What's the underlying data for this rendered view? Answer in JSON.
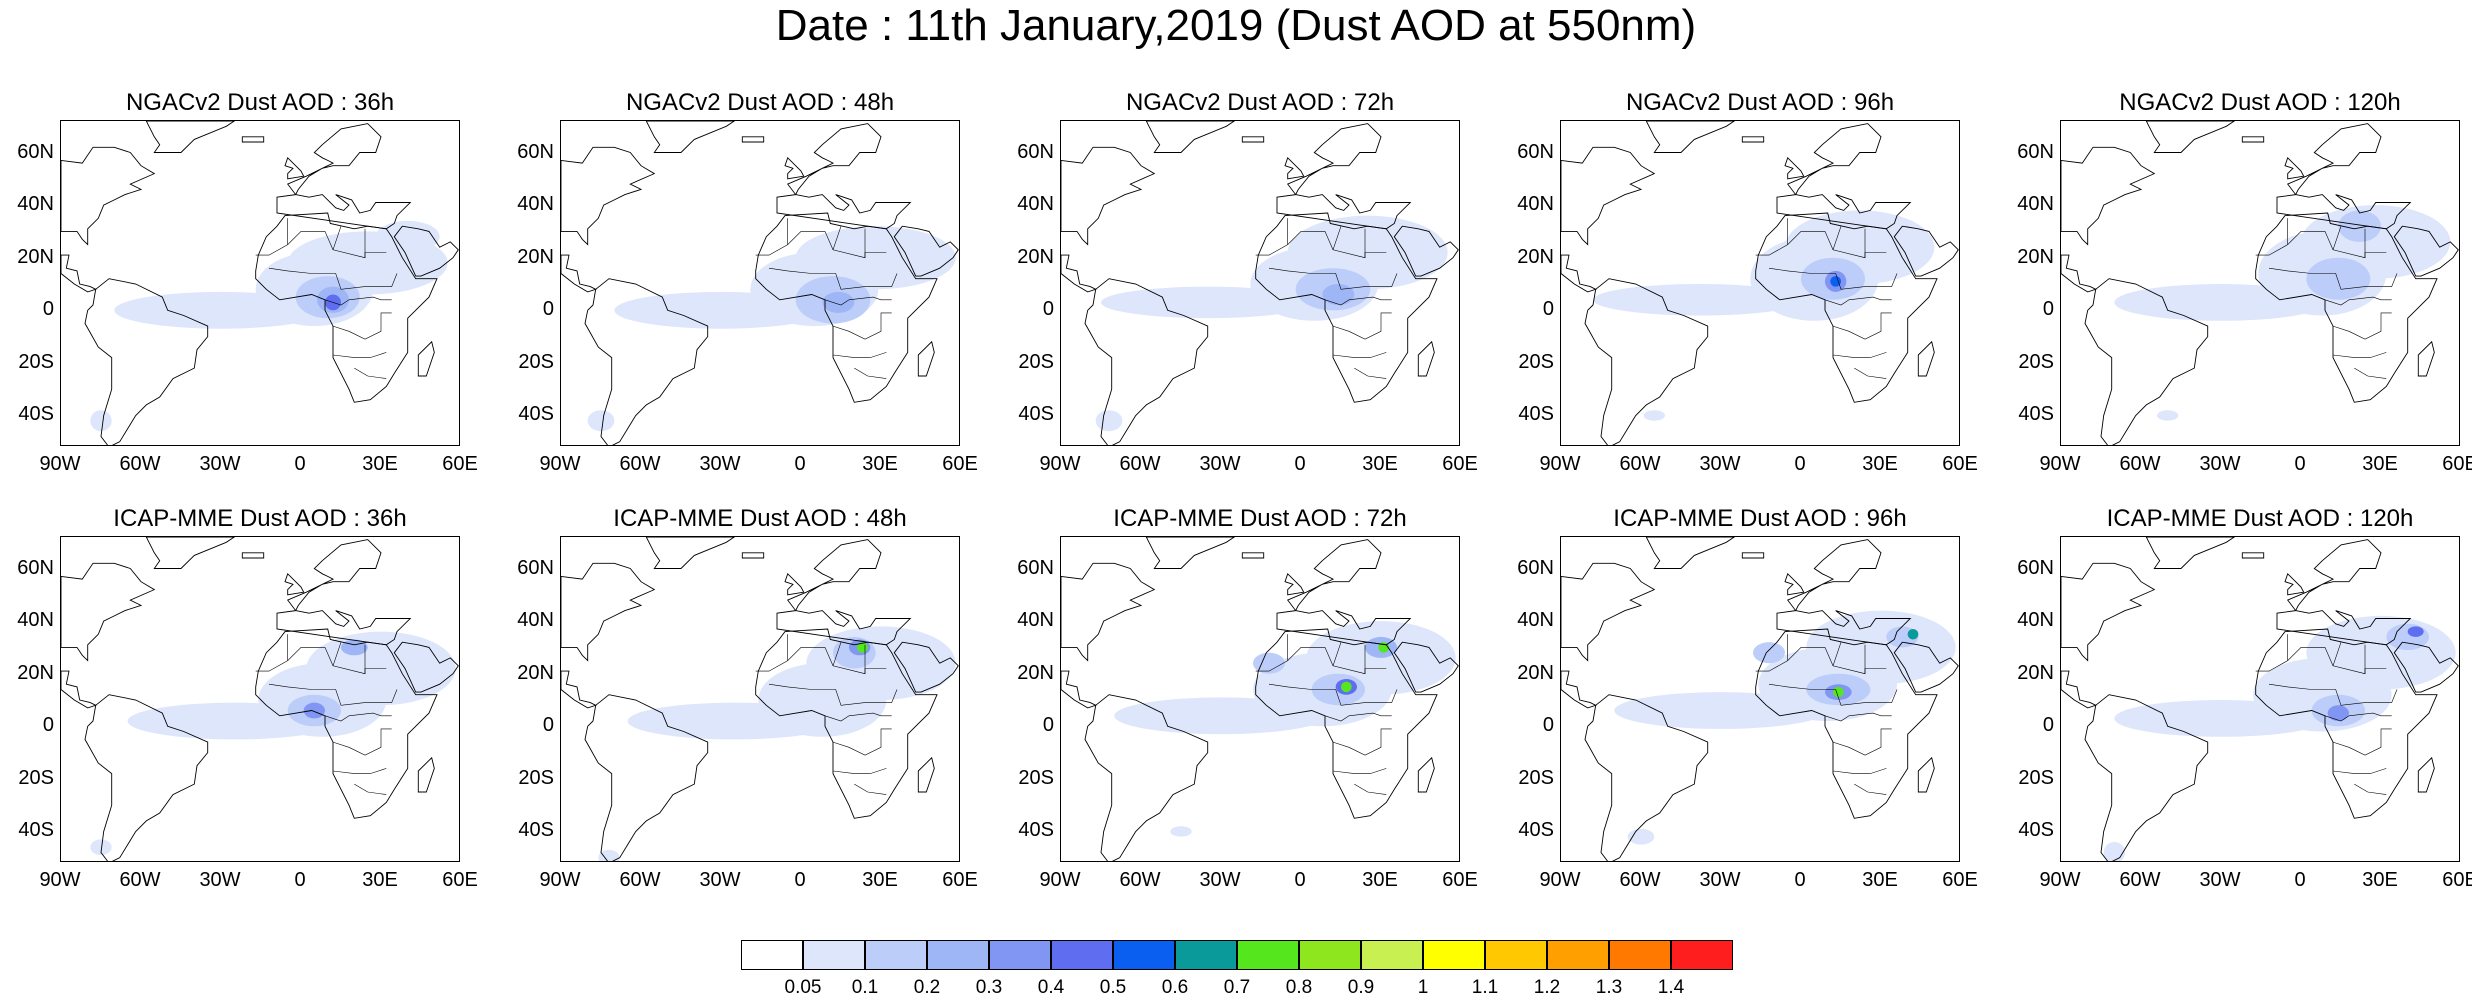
{
  "title": "Date : 11th January,2019 (Dust AOD at 550nm)",
  "colors": {
    "background": "#ffffff",
    "coastline": "#000000"
  },
  "axes": {
    "lat_labels": [
      "60N",
      "40N",
      "20N",
      "0",
      "20S",
      "40S"
    ],
    "lon_labels": [
      "90W",
      "60W",
      "30W",
      "0",
      "30E",
      "60E"
    ]
  },
  "panels": [
    {
      "title": "NGACv2 Dust AOD : 36h",
      "model": "NGACv2",
      "lead": "36h"
    },
    {
      "title": "NGACv2 Dust AOD : 48h",
      "model": "NGACv2",
      "lead": "48h"
    },
    {
      "title": "NGACv2 Dust AOD : 72h",
      "model": "NGACv2",
      "lead": "72h"
    },
    {
      "title": "NGACv2 Dust AOD : 96h",
      "model": "NGACv2",
      "lead": "96h"
    },
    {
      "title": "NGACv2 Dust AOD : 120h",
      "model": "NGACv2",
      "lead": "120h"
    },
    {
      "title": "ICAP-MME Dust AOD : 36h",
      "model": "ICAP-MME",
      "lead": "36h"
    },
    {
      "title": "ICAP-MME Dust AOD : 48h",
      "model": "ICAP-MME",
      "lead": "48h"
    },
    {
      "title": "ICAP-MME Dust AOD : 72h",
      "model": "ICAP-MME",
      "lead": "72h"
    },
    {
      "title": "ICAP-MME Dust AOD : 96h",
      "model": "ICAP-MME",
      "lead": "96h"
    },
    {
      "title": "ICAP-MME Dust AOD : 120h",
      "model": "ICAP-MME",
      "lead": "120h"
    }
  ],
  "colorbar": {
    "labels": [
      "0.05",
      "0.1",
      "0.2",
      "0.3",
      "0.4",
      "0.5",
      "0.6",
      "0.7",
      "0.8",
      "0.9",
      "1",
      "1.1",
      "1.2",
      "1.3",
      "1.4"
    ],
    "colors": [
      "#ffffff",
      "#dde6fb",
      "#bccdf9",
      "#9fb6f6",
      "#8195f2",
      "#5f6ef0",
      "#0a5ff0",
      "#0a9a9a",
      "#55e61e",
      "#8ee61e",
      "#c8f050",
      "#ffff00",
      "#ffc800",
      "#ffa000",
      "#ff7800",
      "#ff1e1e"
    ]
  }
}
